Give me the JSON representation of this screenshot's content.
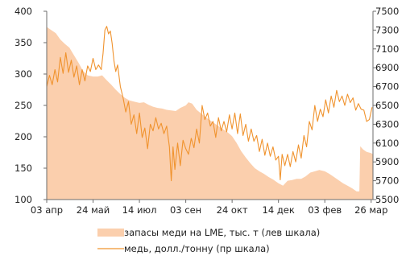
{
  "chart_data": {
    "type": "area",
    "title": "",
    "grid": false,
    "legend_position": "bottom",
    "x_type": "date",
    "x_tick_labels": [
      "03 апр",
      "24 май",
      "14 июл",
      "03 сен",
      "24 окт",
      "14 дек",
      "03 фев",
      "26 мар"
    ],
    "x_tick_dates": [
      "2012-04-03",
      "2012-05-24",
      "2012-07-14",
      "2012-09-03",
      "2012-10-24",
      "2012-12-14",
      "2013-02-03",
      "2013-03-26"
    ],
    "xlim": [
      "2012-04-03",
      "2013-03-28"
    ],
    "y_left": {
      "ylim": [
        100,
        400
      ],
      "ticks": [
        100,
        150,
        200,
        250,
        300,
        350,
        400
      ],
      "tick_labels": [
        "100",
        "150",
        "200",
        "250",
        "300",
        "350",
        "400"
      ]
    },
    "y_right": {
      "ylim": [
        5500,
        7500
      ],
      "ticks": [
        5500,
        5700,
        5900,
        6100,
        6300,
        6500,
        6700,
        6900,
        7100,
        7300,
        7500
      ],
      "tick_labels": [
        "5500",
        "5700",
        "5900",
        "6100",
        "6300",
        "6500",
        "6700",
        "6900",
        "7100",
        "7300",
        "7500"
      ]
    },
    "series": [
      {
        "name": "запасы меди на LME, тыс. т (лев шкала)",
        "type": "area",
        "axis": "left",
        "color": "#fbcfad",
        "points": [
          [
            "2012-04-03",
            375
          ],
          [
            "2012-04-08",
            370
          ],
          [
            "2012-04-13",
            365
          ],
          [
            "2012-04-18",
            355
          ],
          [
            "2012-04-23",
            348
          ],
          [
            "2012-04-28",
            342
          ],
          [
            "2012-05-03",
            330
          ],
          [
            "2012-05-08",
            318
          ],
          [
            "2012-05-13",
            305
          ],
          [
            "2012-05-18",
            298
          ],
          [
            "2012-05-24",
            296
          ],
          [
            "2012-05-29",
            296
          ],
          [
            "2012-06-03",
            298
          ],
          [
            "2012-06-08",
            290
          ],
          [
            "2012-06-13",
            283
          ],
          [
            "2012-06-18",
            275
          ],
          [
            "2012-06-23",
            268
          ],
          [
            "2012-06-28",
            262
          ],
          [
            "2012-07-03",
            258
          ],
          [
            "2012-07-08",
            256
          ],
          [
            "2012-07-14",
            254
          ],
          [
            "2012-07-19",
            255
          ],
          [
            "2012-07-24",
            251
          ],
          [
            "2012-07-29",
            248
          ],
          [
            "2012-08-03",
            246
          ],
          [
            "2012-08-08",
            245
          ],
          [
            "2012-08-13",
            243
          ],
          [
            "2012-08-18",
            242
          ],
          [
            "2012-08-23",
            241
          ],
          [
            "2012-08-28",
            246
          ],
          [
            "2012-09-03",
            250
          ],
          [
            "2012-09-06",
            255
          ],
          [
            "2012-09-10",
            253
          ],
          [
            "2012-09-15",
            243
          ],
          [
            "2012-09-20",
            237
          ],
          [
            "2012-09-25",
            231
          ],
          [
            "2012-09-30",
            226
          ],
          [
            "2012-10-05",
            221
          ],
          [
            "2012-10-10",
            216
          ],
          [
            "2012-10-15",
            211
          ],
          [
            "2012-10-20",
            206
          ],
          [
            "2012-10-24",
            201
          ],
          [
            "2012-10-29",
            190
          ],
          [
            "2012-11-03",
            177
          ],
          [
            "2012-11-08",
            167
          ],
          [
            "2012-11-13",
            158
          ],
          [
            "2012-11-18",
            150
          ],
          [
            "2012-11-23",
            145
          ],
          [
            "2012-11-28",
            141
          ],
          [
            "2012-12-03",
            136
          ],
          [
            "2012-12-08",
            132
          ],
          [
            "2012-12-14",
            126
          ],
          [
            "2012-12-19",
            122
          ],
          [
            "2012-12-24",
            130
          ],
          [
            "2012-12-29",
            131
          ],
          [
            "2013-01-03",
            133
          ],
          [
            "2013-01-08",
            133
          ],
          [
            "2013-01-13",
            137
          ],
          [
            "2013-01-18",
            143
          ],
          [
            "2013-01-23",
            145
          ],
          [
            "2013-01-28",
            147
          ],
          [
            "2013-02-03",
            145
          ],
          [
            "2013-02-08",
            141
          ],
          [
            "2013-02-13",
            136
          ],
          [
            "2013-02-18",
            131
          ],
          [
            "2013-02-23",
            126
          ],
          [
            "2013-02-28",
            122
          ],
          [
            "2013-03-05",
            118
          ],
          [
            "2013-03-10",
            113
          ],
          [
            "2013-03-13",
            113
          ],
          [
            "2013-03-14",
            185
          ],
          [
            "2013-03-17",
            180
          ],
          [
            "2013-03-21",
            176
          ],
          [
            "2013-03-26",
            174
          ],
          [
            "2013-03-28",
            172
          ]
        ]
      },
      {
        "name": "медь, долл./тонну (пр шкала)",
        "type": "line",
        "axis": "right",
        "color": "#f0932e",
        "points": [
          [
            "2012-04-03",
            6700
          ],
          [
            "2012-04-06",
            6820
          ],
          [
            "2012-04-09",
            6720
          ],
          [
            "2012-04-12",
            6880
          ],
          [
            "2012-04-15",
            6750
          ],
          [
            "2012-04-18",
            7010
          ],
          [
            "2012-04-21",
            6840
          ],
          [
            "2012-04-24",
            7060
          ],
          [
            "2012-04-27",
            6850
          ],
          [
            "2012-04-30",
            6980
          ],
          [
            "2012-05-03",
            6800
          ],
          [
            "2012-05-06",
            6920
          ],
          [
            "2012-05-09",
            6720
          ],
          [
            "2012-05-12",
            6880
          ],
          [
            "2012-05-15",
            6760
          ],
          [
            "2012-05-18",
            6920
          ],
          [
            "2012-05-21",
            6860
          ],
          [
            "2012-05-24",
            7000
          ],
          [
            "2012-05-27",
            6880
          ],
          [
            "2012-05-30",
            6930
          ],
          [
            "2012-06-02",
            6880
          ],
          [
            "2012-06-04",
            7050
          ],
          [
            "2012-06-06",
            7300
          ],
          [
            "2012-06-08",
            7340
          ],
          [
            "2012-06-10",
            7260
          ],
          [
            "2012-06-12",
            7290
          ],
          [
            "2012-06-14",
            7160
          ],
          [
            "2012-06-16",
            6970
          ],
          [
            "2012-06-18",
            6860
          ],
          [
            "2012-06-20",
            6930
          ],
          [
            "2012-06-23",
            6700
          ],
          [
            "2012-06-26",
            6580
          ],
          [
            "2012-06-29",
            6430
          ],
          [
            "2012-07-02",
            6540
          ],
          [
            "2012-07-05",
            6300
          ],
          [
            "2012-07-08",
            6400
          ],
          [
            "2012-07-11",
            6200
          ],
          [
            "2012-07-14",
            6420
          ],
          [
            "2012-07-17",
            6160
          ],
          [
            "2012-07-20",
            6260
          ],
          [
            "2012-07-23",
            6040
          ],
          [
            "2012-07-26",
            6300
          ],
          [
            "2012-07-29",
            6230
          ],
          [
            "2012-08-01",
            6370
          ],
          [
            "2012-08-04",
            6250
          ],
          [
            "2012-08-07",
            6310
          ],
          [
            "2012-08-10",
            6200
          ],
          [
            "2012-08-13",
            6280
          ],
          [
            "2012-08-16",
            6060
          ],
          [
            "2012-08-18",
            5700
          ],
          [
            "2012-08-20",
            6060
          ],
          [
            "2012-08-22",
            5820
          ],
          [
            "2012-08-25",
            6100
          ],
          [
            "2012-08-28",
            5860
          ],
          [
            "2012-08-31",
            6130
          ],
          [
            "2012-09-03",
            6040
          ],
          [
            "2012-09-06",
            5980
          ],
          [
            "2012-09-09",
            6150
          ],
          [
            "2012-09-12",
            6050
          ],
          [
            "2012-09-15",
            6250
          ],
          [
            "2012-09-18",
            6100
          ],
          [
            "2012-09-21",
            6500
          ],
          [
            "2012-09-24",
            6350
          ],
          [
            "2012-09-27",
            6420
          ],
          [
            "2012-09-30",
            6280
          ],
          [
            "2012-10-03",
            6330
          ],
          [
            "2012-10-06",
            6160
          ],
          [
            "2012-10-09",
            6370
          ],
          [
            "2012-10-12",
            6230
          ],
          [
            "2012-10-15",
            6330
          ],
          [
            "2012-10-18",
            6220
          ],
          [
            "2012-10-21",
            6400
          ],
          [
            "2012-10-24",
            6250
          ],
          [
            "2012-10-27",
            6420
          ],
          [
            "2012-10-30",
            6200
          ],
          [
            "2012-11-02",
            6410
          ],
          [
            "2012-11-05",
            6180
          ],
          [
            "2012-11-08",
            6300
          ],
          [
            "2012-11-11",
            6120
          ],
          [
            "2012-11-14",
            6250
          ],
          [
            "2012-11-17",
            6120
          ],
          [
            "2012-11-20",
            6180
          ],
          [
            "2012-11-23",
            6010
          ],
          [
            "2012-11-26",
            6140
          ],
          [
            "2012-11-29",
            5970
          ],
          [
            "2012-12-02",
            6100
          ],
          [
            "2012-12-05",
            5960
          ],
          [
            "2012-12-08",
            6060
          ],
          [
            "2012-12-11",
            5920
          ],
          [
            "2012-12-14",
            5960
          ],
          [
            "2012-12-16",
            5710
          ],
          [
            "2012-12-18",
            5980
          ],
          [
            "2012-12-21",
            5860
          ],
          [
            "2012-12-24",
            5980
          ],
          [
            "2012-12-27",
            5850
          ],
          [
            "2012-12-30",
            6010
          ],
          [
            "2013-01-02",
            5900
          ],
          [
            "2013-01-05",
            6080
          ],
          [
            "2013-01-08",
            5940
          ],
          [
            "2013-01-11",
            6180
          ],
          [
            "2013-01-14",
            6060
          ],
          [
            "2013-01-17",
            6330
          ],
          [
            "2013-01-20",
            6240
          ],
          [
            "2013-01-23",
            6500
          ],
          [
            "2013-01-26",
            6330
          ],
          [
            "2013-01-29",
            6460
          ],
          [
            "2013-02-01",
            6380
          ],
          [
            "2013-02-04",
            6560
          ],
          [
            "2013-02-07",
            6420
          ],
          [
            "2013-02-10",
            6600
          ],
          [
            "2013-02-13",
            6480
          ],
          [
            "2013-02-16",
            6660
          ],
          [
            "2013-02-19",
            6540
          ],
          [
            "2013-02-22",
            6600
          ],
          [
            "2013-02-25",
            6500
          ],
          [
            "2013-02-28",
            6620
          ],
          [
            "2013-03-03",
            6530
          ],
          [
            "2013-03-06",
            6580
          ],
          [
            "2013-03-09",
            6450
          ],
          [
            "2013-03-12",
            6520
          ],
          [
            "2013-03-15",
            6460
          ],
          [
            "2013-03-18",
            6450
          ],
          [
            "2013-03-21",
            6330
          ],
          [
            "2013-03-24",
            6350
          ],
          [
            "2013-03-27",
            6480
          ]
        ]
      }
    ]
  }
}
